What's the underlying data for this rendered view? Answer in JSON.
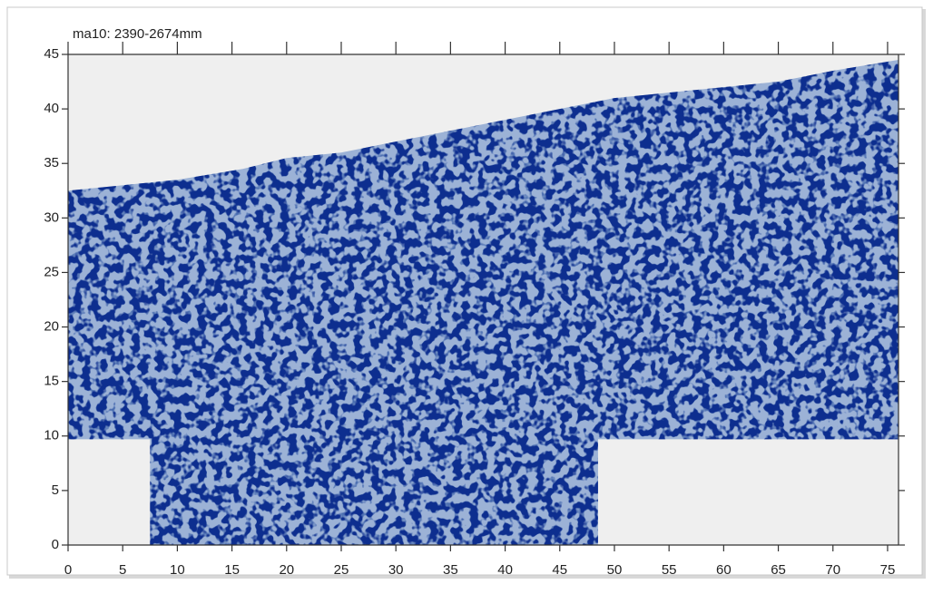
{
  "chart_data": {
    "type": "heatmap",
    "title": "ma10:  2390-2674mm",
    "xlim": [
      0,
      76
    ],
    "ylim": [
      0,
      45
    ],
    "xticks": [
      0,
      5,
      10,
      15,
      20,
      25,
      30,
      35,
      40,
      45,
      50,
      55,
      60,
      65,
      70,
      75
    ],
    "yticks": [
      0,
      5,
      10,
      15,
      20,
      25,
      30,
      35,
      40,
      45
    ],
    "low_color": "#d4e5f2",
    "high_color": "#0b2f8f",
    "region": {
      "x": [
        0,
        5,
        10,
        13,
        16,
        20,
        25,
        30,
        35,
        40,
        45,
        50,
        55,
        60,
        65,
        70,
        76,
        76,
        48.5,
        48.5,
        7.5,
        7.5,
        0
      ],
      "y": [
        32.5,
        33,
        33.5,
        34,
        34.5,
        35.5,
        36,
        37,
        38,
        39,
        40,
        41,
        41.5,
        42,
        42.5,
        43.5,
        44.5,
        9.7,
        9.7,
        0,
        0,
        9.7,
        9.7
      ]
    }
  }
}
